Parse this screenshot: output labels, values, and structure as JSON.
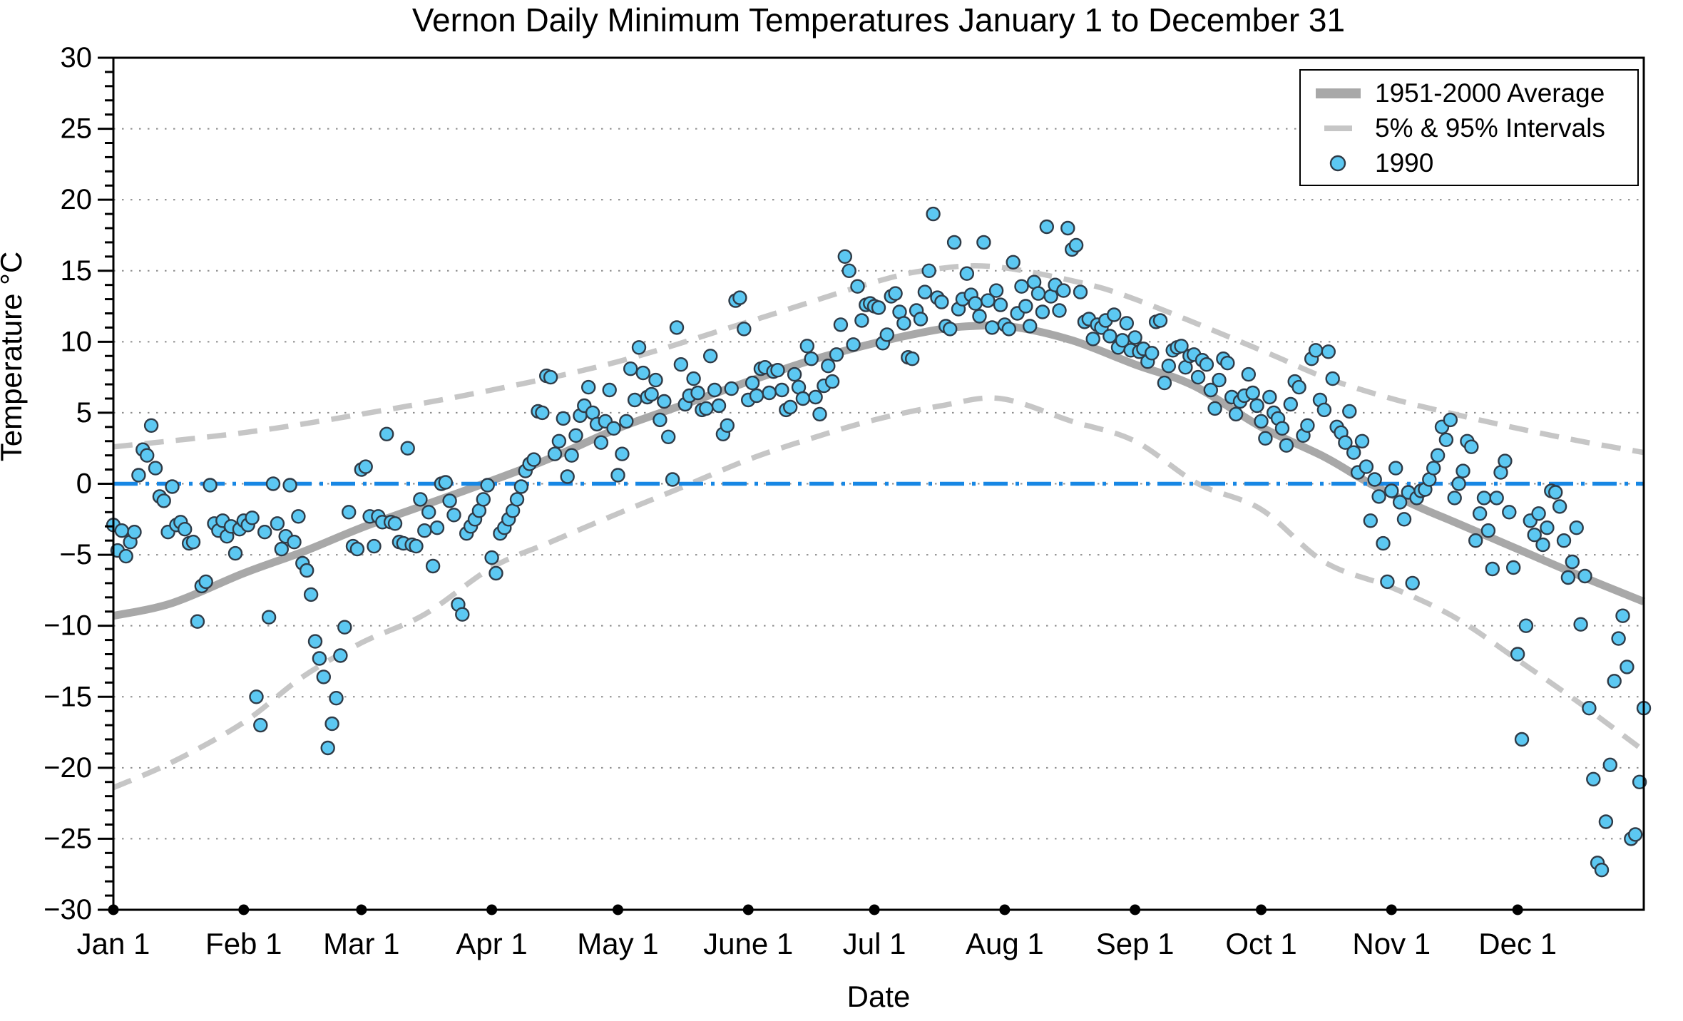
{
  "title": "Vernon Daily Minimum Temperatures January 1 to December 31",
  "axes": {
    "x_label": "Date",
    "y_label": "Temperature °C",
    "x_tick_labels": [
      "Jan 1",
      "Feb 1",
      "Mar 1",
      "Apr 1",
      "May 1",
      "June 1",
      "Jul 1",
      "Aug 1",
      "Sep 1",
      "Oct 1",
      "Nov 1",
      "Dec 1"
    ],
    "y_tick_values": [
      -30,
      -25,
      -20,
      -15,
      -10,
      -5,
      0,
      5,
      10,
      15,
      20,
      25,
      30
    ]
  },
  "legend": {
    "average_label": "1951-2000 Average",
    "intervals_label": "5% & 95% Intervals",
    "year_label": "1990"
  },
  "colors": {
    "average_line": "#A8A8A8",
    "interval_line": "#C6C6C6",
    "zero_line": "#1787E4",
    "marker_fill": "#5CC8F2",
    "marker_edge": "#2F3B47",
    "grid": "#8C8C8C",
    "axis": "#000000"
  },
  "chart_data": {
    "type": "scatter",
    "title": "Vernon Daily Minimum Temperatures January 1 to December 31",
    "xlabel": "Date",
    "ylabel": "Temperature °C",
    "xlim_days": [
      1,
      365
    ],
    "ylim": [
      -30,
      30
    ],
    "grid": "dotted horizontal every 5 degrees",
    "legend_position": "upper right",
    "zero_reference_line": 0,
    "month_start_days": [
      1,
      32,
      60,
      91,
      121,
      152,
      182,
      213,
      244,
      274,
      305,
      335
    ],
    "month_labels": [
      "Jan 1",
      "Feb 1",
      "Mar 1",
      "Apr 1",
      "May 1",
      "June 1",
      "Jul 1",
      "Aug 1",
      "Sep 1",
      "Oct 1",
      "Nov 1",
      "Dec 1"
    ],
    "average_curve_day_value": [
      [
        1,
        -9.3
      ],
      [
        15,
        -8.4
      ],
      [
        32,
        -6.3
      ],
      [
        46,
        -4.8
      ],
      [
        60,
        -3.1
      ],
      [
        75,
        -1.5
      ],
      [
        89,
        0
      ],
      [
        105,
        1.8
      ],
      [
        121,
        3.9
      ],
      [
        135,
        5.4
      ],
      [
        152,
        7.2
      ],
      [
        167,
        8.7
      ],
      [
        182,
        9.9
      ],
      [
        196,
        10.8
      ],
      [
        205,
        11.1
      ],
      [
        215,
        11.05
      ],
      [
        229,
        10.1
      ],
      [
        244,
        8.4
      ],
      [
        258,
        6.9
      ],
      [
        274,
        4.0
      ],
      [
        289,
        1.9
      ],
      [
        300,
        0
      ],
      [
        312,
        -1.7
      ],
      [
        320,
        -2.7
      ],
      [
        335,
        -4.6
      ],
      [
        350,
        -6.5
      ],
      [
        365,
        -8.3
      ]
    ],
    "upper_95_curve_day_value": [
      [
        1,
        2.6
      ],
      [
        32,
        3.6
      ],
      [
        60,
        4.9
      ],
      [
        91,
        6.6
      ],
      [
        121,
        8.6
      ],
      [
        152,
        11.4
      ],
      [
        182,
        14.2
      ],
      [
        196,
        15.1
      ],
      [
        210,
        15.3
      ],
      [
        229,
        14.3
      ],
      [
        244,
        13.0
      ],
      [
        274,
        9.4
      ],
      [
        289,
        7.5
      ],
      [
        305,
        6.0
      ],
      [
        320,
        4.9
      ],
      [
        335,
        3.9
      ],
      [
        350,
        3.0
      ],
      [
        365,
        2.2
      ]
    ],
    "lower_5_curve_day_value": [
      [
        1,
        -21.4
      ],
      [
        15,
        -19.6
      ],
      [
        32,
        -16.8
      ],
      [
        46,
        -13.6
      ],
      [
        60,
        -11.2
      ],
      [
        75,
        -9.2
      ],
      [
        91,
        -5.9
      ],
      [
        105,
        -4.1
      ],
      [
        121,
        -2.1
      ],
      [
        135,
        -0.4
      ],
      [
        152,
        1.7
      ],
      [
        167,
        3.2
      ],
      [
        182,
        4.5
      ],
      [
        198,
        5.5
      ],
      [
        212,
        6.0
      ],
      [
        229,
        4.4
      ],
      [
        244,
        3.0
      ],
      [
        259,
        0.0
      ],
      [
        274,
        -1.8
      ],
      [
        289,
        -5.5
      ],
      [
        305,
        -7.3
      ],
      [
        320,
        -9.4
      ],
      [
        335,
        -12.4
      ],
      [
        350,
        -15.5
      ],
      [
        365,
        -18.8
      ]
    ],
    "series_1990_daily_min_by_month": {
      "Jan": [
        -2.9,
        -4.7,
        -3.3,
        -5.1,
        -4.1,
        -3.4,
        0.6,
        2.4,
        2.0,
        4.1,
        1.1,
        -0.9,
        -1.2,
        -3.4,
        -0.2,
        -2.9,
        -2.7,
        -3.2,
        -4.2,
        -4.1,
        -9.7,
        -7.2,
        -6.9,
        -0.1,
        -2.8,
        -3.3,
        -2.6,
        -3.7,
        -3.0,
        -4.9,
        -3.2
      ],
      "Feb": [
        -2.6,
        -2.9,
        -2.4,
        -15.0,
        -17.0,
        -3.4,
        -9.4,
        0.0,
        -2.8,
        -4.6,
        -3.7,
        -0.1,
        -4.1,
        -2.3,
        -5.6,
        -6.1,
        -7.8,
        -11.1,
        -12.3,
        -13.6,
        -18.6,
        -16.9,
        -15.1,
        -12.1,
        -10.1,
        -2.0,
        -4.4,
        -4.6
      ],
      "Mar": [
        1.0,
        1.2,
        -2.3,
        -4.4,
        -2.3,
        -2.7,
        3.5,
        -2.7,
        -2.8,
        -4.1,
        -4.2,
        2.5,
        -4.3,
        -4.4,
        -1.1,
        -3.3,
        -2.0,
        -5.8,
        -3.1,
        0.0,
        0.1,
        -1.2,
        -2.2,
        -8.5,
        -9.2,
        -3.5,
        -3.0,
        -2.5,
        -1.9,
        -1.1,
        -0.1
      ],
      "Apr": [
        -5.2,
        -6.3,
        -3.5,
        -3.1,
        -2.5,
        -1.9,
        -1.1,
        -0.2,
        0.9,
        1.4,
        1.7,
        5.1,
        5.0,
        7.6,
        7.5,
        2.1,
        3.0,
        4.6,
        0.5,
        2.0,
        3.4,
        4.8,
        5.5,
        6.8,
        5.0,
        4.2,
        2.9,
        4.4,
        6.6,
        3.9
      ],
      "May": [
        0.6,
        2.1,
        4.4,
        8.1,
        5.9,
        9.6,
        7.8,
        6.1,
        6.3,
        7.3,
        4.5,
        5.8,
        3.3,
        0.3,
        11.0,
        8.4,
        5.6,
        6.2,
        7.4,
        6.4,
        5.2,
        5.3,
        9.0,
        6.6,
        5.5,
        3.5,
        4.1,
        6.7,
        12.9,
        13.1,
        10.9
      ],
      "Jun": [
        5.9,
        7.1,
        6.2,
        8.1,
        8.2,
        6.4,
        7.9,
        8.0,
        6.6,
        5.2,
        5.4,
        7.7,
        6.8,
        6.0,
        9.7,
        8.8,
        6.1,
        4.9,
        6.9,
        8.3,
        7.2,
        9.1,
        11.2,
        16.0,
        15.0,
        9.8,
        13.9,
        11.5,
        12.6,
        12.7
      ],
      "Jul": [
        12.5,
        12.4,
        9.9,
        10.5,
        13.2,
        13.4,
        12.1,
        11.3,
        8.9,
        8.8,
        12.2,
        11.6,
        13.5,
        15.0,
        19.0,
        13.1,
        12.8,
        11.1,
        10.9,
        17.0,
        12.3,
        13.0,
        14.8,
        13.3,
        12.7,
        11.8,
        17.0,
        12.9,
        11.0,
        13.6,
        12.6
      ],
      "Aug": [
        11.2,
        10.9,
        15.6,
        12.0,
        13.9,
        12.5,
        11.1,
        14.2,
        13.4,
        12.1,
        18.1,
        13.2,
        14.0,
        12.2,
        13.6,
        18.0,
        16.5,
        16.8,
        13.5,
        11.4,
        11.6,
        10.2,
        11.2,
        11.0,
        11.5,
        10.4,
        11.9,
        9.6,
        10.1,
        11.3,
        9.4
      ],
      "Sep": [
        10.3,
        9.3,
        9.5,
        8.6,
        9.2,
        11.4,
        11.5,
        7.1,
        8.3,
        9.4,
        9.6,
        9.7,
        8.2,
        9.0,
        9.1,
        7.5,
        8.7,
        8.4,
        6.6,
        5.3,
        7.3,
        8.8,
        8.5,
        6.1,
        4.9,
        5.8,
        6.2,
        7.7,
        6.4,
        5.5
      ],
      "Oct": [
        4.4,
        3.2,
        6.1,
        5.0,
        4.6,
        3.9,
        2.7,
        5.6,
        7.2,
        6.8,
        3.4,
        4.1,
        8.8,
        9.4,
        5.9,
        5.2,
        9.3,
        7.4,
        4.0,
        3.6,
        2.9,
        5.1,
        2.2,
        0.8,
        3.0,
        1.2,
        -2.6,
        0.3,
        -0.9,
        -4.2,
        -6.9
      ],
      "Nov": [
        -0.5,
        1.1,
        -1.3,
        -2.5,
        -0.6,
        -7.0,
        -1.0,
        -0.5,
        -0.4,
        0.3,
        1.1,
        2.0,
        4.0,
        3.1,
        4.5,
        -1.0,
        0.0,
        0.9,
        3.0,
        2.6,
        -4.0,
        -2.1,
        -1.0,
        -3.3,
        -6.0,
        -1.0,
        0.8,
        1.6,
        -2.0,
        -5.9
      ],
      "Dec": [
        -12.0,
        -18.0,
        -10.0,
        -2.6,
        -3.6,
        -2.1,
        -4.3,
        -3.1,
        -0.5,
        -0.6,
        -1.6,
        -4.0,
        -6.6,
        -5.5,
        -3.1,
        -9.9,
        -6.5,
        -15.8,
        -20.8,
        -26.7,
        -27.2,
        -23.8,
        -19.8,
        -13.9,
        -10.9,
        -9.3,
        -12.9,
        -25.0,
        -24.7,
        -21.0,
        -15.8
      ]
    }
  }
}
